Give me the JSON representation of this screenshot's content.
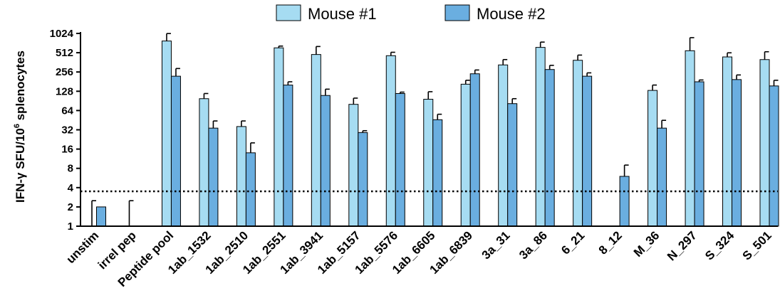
{
  "chart_data": {
    "type": "bar",
    "ylabel": "IFN-γ SFU/10",
    "ylabel_sup": "6",
    "ylabel_suffix": " splenocytes",
    "yscale": "log2",
    "ylim": [
      1,
      1024
    ],
    "yticks": [
      "1",
      "2",
      "4",
      "8",
      "16",
      "32",
      "64",
      "128",
      "256",
      "512",
      "1024"
    ],
    "threshold": 3.5,
    "legend_position": "top-center",
    "categories": [
      "unstim",
      "irrel pep",
      "Peptide pool",
      "1ab_1532",
      "1ab_2510",
      "1ab_2551",
      "1ab_3941",
      "1ab_5157",
      "1ab_5576",
      "1ab_6605",
      "1ab_6839",
      "3a_31",
      "3a_86",
      "6_21",
      "8_12",
      "M_36",
      "N_297",
      "S_324",
      "S_501"
    ],
    "series": [
      {
        "name": "Mouse #1",
        "color": "#a6dcf2",
        "values": [
          1,
          1,
          780,
          98,
          36,
          610,
          480,
          80,
          460,
          96,
          165,
          330,
          620,
          390,
          1,
          132,
          550,
          440,
          400
        ],
        "errors": [
          2.5,
          2.5,
          1020,
          118,
          44,
          650,
          640,
          100,
          520,
          126,
          190,
          400,
          750,
          470,
          null,
          160,
          880,
          510,
          530
        ]
      },
      {
        "name": "Mouse #2",
        "color": "#6aaee0",
        "values": [
          2,
          1,
          220,
          34,
          14,
          160,
          110,
          29,
          118,
          46,
          240,
          82,
          280,
          220,
          6,
          34,
          180,
          195,
          155
        ],
        "errors": [
          null,
          null,
          290,
          44,
          20,
          180,
          138,
          31,
          124,
          56,
          275,
          98,
          325,
          248,
          9,
          45,
          192,
          230,
          190
        ]
      }
    ]
  }
}
